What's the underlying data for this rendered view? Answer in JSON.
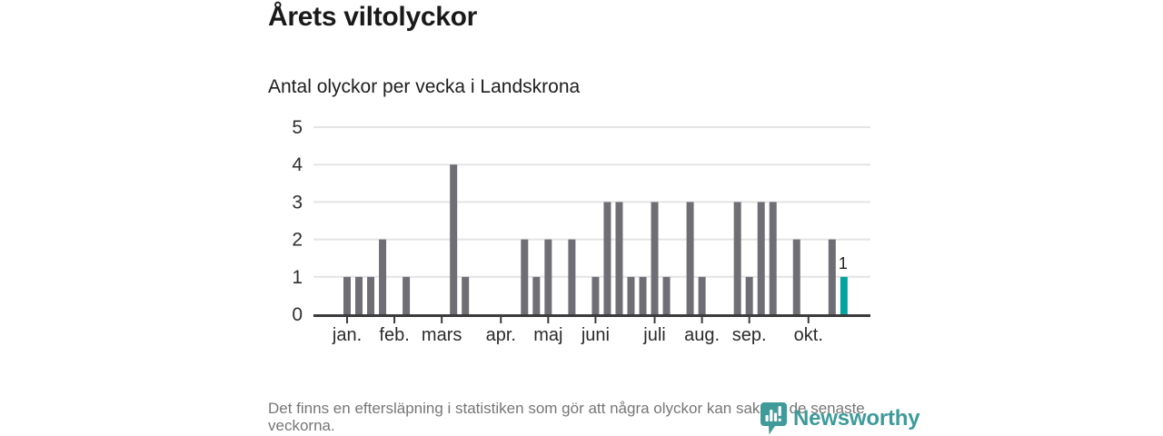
{
  "chart_data": {
    "type": "bar",
    "title": "Årets viltolyckor",
    "subtitle": "Antal olyckor per vecka i Landskrona",
    "x_unit": "vecka",
    "weeks": [
      1,
      2,
      3,
      4,
      5,
      6,
      7,
      8,
      9,
      10,
      11,
      12,
      13,
      14,
      15,
      16,
      17,
      18,
      19,
      20,
      21,
      22,
      23,
      24,
      25,
      26,
      27,
      28,
      29,
      30,
      31,
      32,
      33,
      34,
      35,
      36,
      37,
      38,
      39,
      40,
      41,
      42,
      43
    ],
    "values": [
      1,
      1,
      1,
      2,
      0,
      1,
      0,
      0,
      0,
      4,
      1,
      0,
      0,
      0,
      0,
      2,
      1,
      2,
      0,
      2,
      0,
      1,
      3,
      3,
      1,
      1,
      3,
      1,
      0,
      3,
      1,
      0,
      0,
      3,
      1,
      3,
      3,
      0,
      2,
      0,
      0,
      2,
      1
    ],
    "month_ticks": [
      {
        "label": "jan.",
        "week": 1
      },
      {
        "label": "feb.",
        "week": 5
      },
      {
        "label": "mars",
        "week": 9
      },
      {
        "label": "apr.",
        "week": 14
      },
      {
        "label": "maj",
        "week": 18
      },
      {
        "label": "juni",
        "week": 22
      },
      {
        "label": "juli",
        "week": 27
      },
      {
        "label": "aug.",
        "week": 31
      },
      {
        "label": "sep.",
        "week": 35
      },
      {
        "label": "okt.",
        "week": 40
      }
    ],
    "ylim": [
      0,
      5
    ],
    "ytick_labels": [
      "0",
      "1",
      "2",
      "3",
      "4",
      "5"
    ],
    "grid": "horizontal",
    "legend": "none",
    "bar_color": "#6F6E74",
    "highlight_color": "#00A39E",
    "highlight_last_bar": true,
    "last_bar_label": "1"
  },
  "footer": {
    "note": "Det finns en eftersläpning i statistiken som gör att några olyckor kan saknas de senaste veckorna.",
    "logo_text": "Newsworthy",
    "logo_color": "#3E9B99"
  }
}
